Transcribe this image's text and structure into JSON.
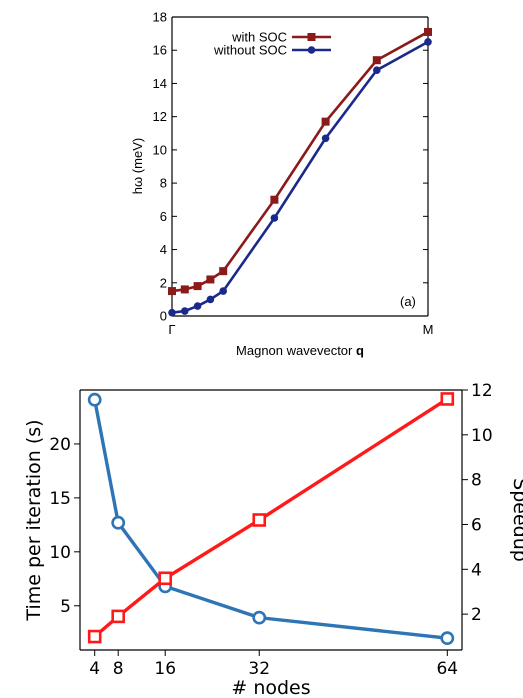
{
  "chart_data": [
    {
      "type": "line",
      "panel_label": "(a)",
      "xlabel": "Magnon wavevector",
      "xlabel_bold": "q",
      "ylabel": "hω (meV)",
      "ylim": [
        0,
        18
      ],
      "yticks": [
        0,
        2,
        4,
        6,
        8,
        10,
        12,
        14,
        16,
        18
      ],
      "xlim": [
        0,
        1
      ],
      "xticks": [
        {
          "x": 0,
          "label": "Γ"
        },
        {
          "x": 1,
          "label": "M"
        }
      ],
      "legend_position": "top-left",
      "series": [
        {
          "name": "with SOC",
          "color": "#8b1a1a",
          "marker": "square",
          "x": [
            0.0,
            0.05,
            0.1,
            0.15,
            0.2,
            0.4,
            0.6,
            0.8,
            1.0
          ],
          "y": [
            1.5,
            1.6,
            1.8,
            2.2,
            2.7,
            7.0,
            11.7,
            15.4,
            17.1
          ]
        },
        {
          "name": "without SOC",
          "color": "#1a2a8b",
          "marker": "circle",
          "x": [
            0.0,
            0.05,
            0.1,
            0.15,
            0.2,
            0.4,
            0.6,
            0.8,
            1.0
          ],
          "y": [
            0.2,
            0.3,
            0.6,
            1.0,
            1.5,
            5.9,
            10.7,
            14.8,
            16.5
          ]
        }
      ]
    },
    {
      "type": "line",
      "xlabel": "# nodes",
      "ylabel_left": "Time per iteration (s)",
      "ylabel_right": "Speedup",
      "xlim": [
        1.5,
        66.5
      ],
      "xticks": [
        4,
        8,
        16,
        32,
        64
      ],
      "ylim_left": [
        0.9,
        25.0
      ],
      "yticks_left": [
        5,
        10,
        15,
        20
      ],
      "ylim_right": [
        0.4,
        12.0
      ],
      "yticks_right": [
        2,
        4,
        6,
        8,
        10,
        12
      ],
      "series": [
        {
          "axis": "left",
          "color": "#2e75b6",
          "marker": "circle",
          "x": [
            4,
            8,
            16,
            32,
            64
          ],
          "y": [
            24.1,
            12.7,
            6.8,
            3.9,
            2.0
          ]
        },
        {
          "axis": "right",
          "color": "#ff1a1a",
          "marker": "square",
          "x": [
            4,
            8,
            16,
            32,
            64
          ],
          "y": [
            1.0,
            1.9,
            3.6,
            6.2,
            11.6
          ]
        }
      ]
    }
  ]
}
